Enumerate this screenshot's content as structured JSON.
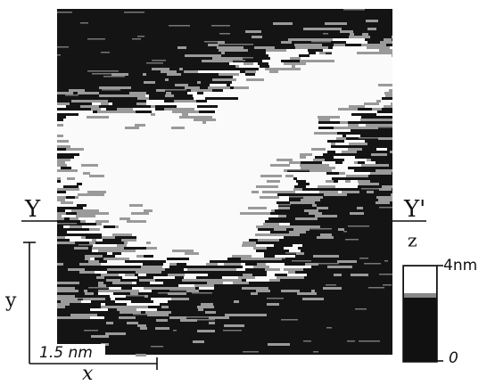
{
  "figure": {
    "labels": {
      "y_left": "Y",
      "y_right": "Y'",
      "z": "z",
      "z_max": "4nm",
      "z_min": "0",
      "y_axis": "y",
      "scale": "1.5 nm",
      "x_axis": "x"
    }
  }
}
